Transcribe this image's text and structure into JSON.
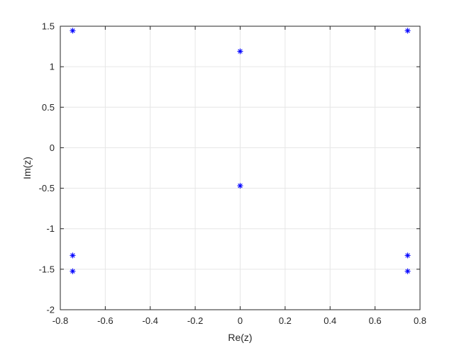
{
  "chart_data": {
    "type": "scatter",
    "title": "",
    "xlabel": "Re(z)",
    "ylabel": "Im(z)",
    "xlim": [
      -0.8,
      0.8
    ],
    "ylim": [
      -2,
      1.5
    ],
    "xticks": [
      -0.8,
      -0.6,
      -0.4,
      -0.2,
      0,
      0.2,
      0.4,
      0.6,
      0.8
    ],
    "yticks": [
      -2,
      -1.5,
      -1,
      -0.5,
      0,
      0.5,
      1,
      1.5
    ],
    "xtick_labels": [
      "-0.8",
      "-0.6",
      "-0.4",
      "-0.2",
      "0",
      "0.2",
      "0.4",
      "0.6",
      "0.8"
    ],
    "ytick_labels": [
      "-2",
      "-1.5",
      "-1",
      "-0.5",
      "0",
      "0.5",
      "1",
      "1.5"
    ],
    "grid": true,
    "marker": "asterisk",
    "color": "#0000ff",
    "points": [
      {
        "x": -0.745,
        "y": 1.445
      },
      {
        "x": 0.745,
        "y": 1.445
      },
      {
        "x": 0.0,
        "y": 1.19
      },
      {
        "x": 0.0,
        "y": -0.47
      },
      {
        "x": -0.745,
        "y": -1.33
      },
      {
        "x": 0.745,
        "y": -1.33
      },
      {
        "x": -0.745,
        "y": -1.525
      },
      {
        "x": 0.745,
        "y": -1.525
      }
    ]
  }
}
